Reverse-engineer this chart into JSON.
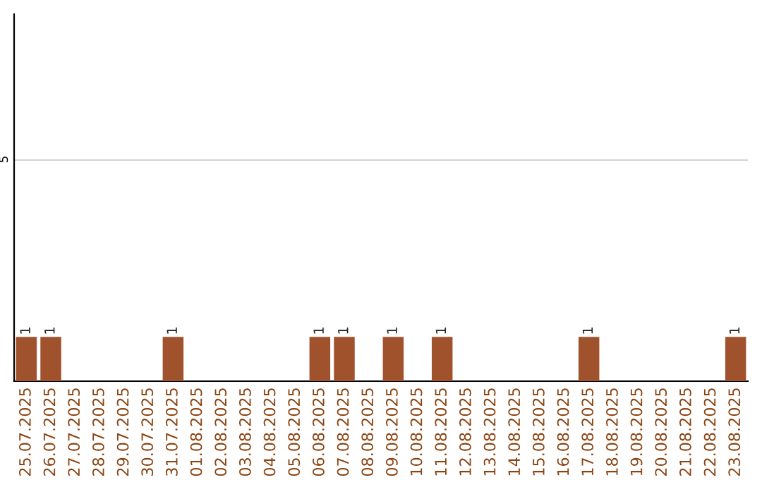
{
  "chart_data": {
    "type": "bar",
    "categories": [
      "25.07.2025",
      "26.07.2025",
      "27.07.2025",
      "28.07.2025",
      "29.07.2025",
      "30.07.2025",
      "31.07.2025",
      "01.08.2025",
      "02.08.2025",
      "03.08.2025",
      "04.08.2025",
      "05.08.2025",
      "06.08.2025",
      "07.08.2025",
      "08.08.2025",
      "09.08.2025",
      "10.08.2025",
      "11.08.2025",
      "12.08.2025",
      "13.08.2025",
      "14.08.2025",
      "15.08.2025",
      "16.08.2025",
      "17.08.2025",
      "18.08.2025",
      "19.08.2025",
      "20.08.2025",
      "21.08.2025",
      "22.08.2025",
      "23.08.2025"
    ],
    "values": [
      1,
      1,
      0,
      0,
      0,
      0,
      1,
      0,
      0,
      0,
      0,
      0,
      1,
      1,
      0,
      1,
      0,
      1,
      0,
      0,
      0,
      0,
      0,
      1,
      0,
      0,
      0,
      0,
      0,
      1
    ],
    "value_labels": [
      "1",
      "1",
      null,
      null,
      null,
      null,
      "1",
      null,
      null,
      null,
      null,
      null,
      "1",
      "1",
      null,
      "1",
      null,
      "1",
      null,
      null,
      null,
      null,
      null,
      "1",
      null,
      null,
      null,
      null,
      null,
      "1"
    ],
    "color": "#a0522d",
    "ylim": [
      0,
      8.3
    ],
    "yticks": [
      5
    ],
    "grid": "y"
  }
}
